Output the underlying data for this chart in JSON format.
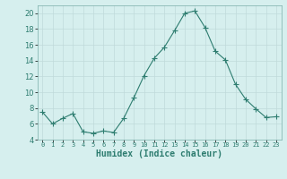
{
  "x": [
    0,
    1,
    2,
    3,
    4,
    5,
    6,
    7,
    8,
    9,
    10,
    11,
    12,
    13,
    14,
    15,
    16,
    17,
    18,
    19,
    20,
    21,
    22,
    23
  ],
  "y": [
    7.5,
    6.0,
    6.7,
    7.3,
    5.0,
    4.8,
    5.1,
    4.9,
    6.7,
    9.3,
    12.1,
    14.3,
    15.7,
    17.8,
    20.0,
    20.3,
    18.2,
    15.2,
    14.1,
    11.0,
    9.1,
    7.9,
    6.8,
    6.9
  ],
  "line_color": "#2e7d70",
  "marker": "+",
  "marker_size": 4,
  "bg_color": "#d6efee",
  "grid_color": "#c0dada",
  "xlabel": "Humidex (Indice chaleur)",
  "ylim": [
    4,
    21
  ],
  "xlim": [
    -0.5,
    23.5
  ],
  "yticks": [
    4,
    6,
    8,
    10,
    12,
    14,
    16,
    18,
    20
  ],
  "xtick_labels": [
    "0",
    "1",
    "2",
    "3",
    "4",
    "5",
    "6",
    "7",
    "8",
    "9",
    "10",
    "11",
    "12",
    "13",
    "14",
    "15",
    "16",
    "17",
    "18",
    "19",
    "20",
    "21",
    "22",
    "23"
  ],
  "xlabel_fontsize": 7,
  "ytick_fontsize": 6,
  "xtick_fontsize": 5
}
